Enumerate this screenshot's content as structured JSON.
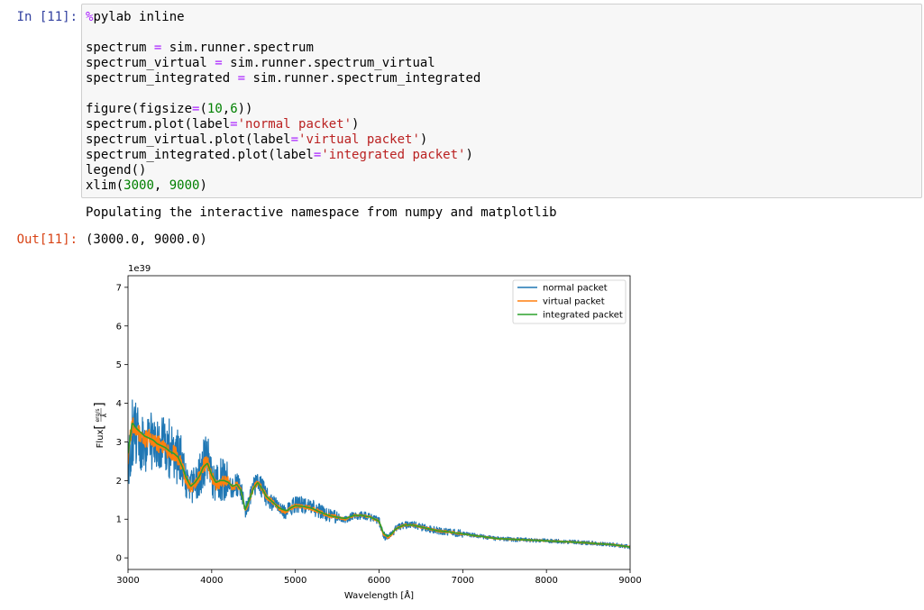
{
  "cell": {
    "in_prompt": "In [11]:",
    "out_prompt": "Out[11]:",
    "code_lines": [
      [
        {
          "t": "%",
          "c": "kw"
        },
        {
          "t": "pylab inline",
          "c": ""
        }
      ],
      [
        {
          "t": "",
          "c": ""
        }
      ],
      [
        {
          "t": "spectrum ",
          "c": ""
        },
        {
          "t": "=",
          "c": "op"
        },
        {
          "t": " sim.runner.spectrum",
          "c": ""
        }
      ],
      [
        {
          "t": "spectrum_virtual ",
          "c": ""
        },
        {
          "t": "=",
          "c": "op"
        },
        {
          "t": " sim.runner.spectrum_virtual",
          "c": ""
        }
      ],
      [
        {
          "t": "spectrum_integrated ",
          "c": ""
        },
        {
          "t": "=",
          "c": "op"
        },
        {
          "t": " sim.runner.spectrum_integrated",
          "c": ""
        }
      ],
      [
        {
          "t": "",
          "c": ""
        }
      ],
      [
        {
          "t": "figure(figsize",
          "c": ""
        },
        {
          "t": "=",
          "c": "op"
        },
        {
          "t": "(",
          "c": ""
        },
        {
          "t": "10",
          "c": "num"
        },
        {
          "t": ",",
          "c": ""
        },
        {
          "t": "6",
          "c": "num"
        },
        {
          "t": "))",
          "c": ""
        }
      ],
      [
        {
          "t": "spectrum.plot(label",
          "c": ""
        },
        {
          "t": "=",
          "c": "op"
        },
        {
          "t": "'normal packet'",
          "c": "str"
        },
        {
          "t": ")",
          "c": ""
        }
      ],
      [
        {
          "t": "spectrum_virtual.plot(label",
          "c": ""
        },
        {
          "t": "=",
          "c": "op"
        },
        {
          "t": "'virtual packet'",
          "c": "str"
        },
        {
          "t": ")",
          "c": ""
        }
      ],
      [
        {
          "t": "spectrum_integrated.plot(label",
          "c": ""
        },
        {
          "t": "=",
          "c": "op"
        },
        {
          "t": "'integrated packet'",
          "c": "str"
        },
        {
          "t": ")",
          "c": ""
        }
      ],
      [
        {
          "t": "legend()",
          "c": ""
        }
      ],
      [
        {
          "t": "xlim(",
          "c": ""
        },
        {
          "t": "3000",
          "c": "num"
        },
        {
          "t": ", ",
          "c": ""
        },
        {
          "t": "9000",
          "c": "num"
        },
        {
          "t": ")",
          "c": ""
        }
      ]
    ],
    "stream_output": "Populating the interactive namespace from numpy and matplotlib",
    "result_output": "(3000.0, 9000.0)"
  },
  "chart_data": {
    "type": "line",
    "xlabel": "Wavelength [Å]",
    "ylabel": "Flux [erg/s/Å]",
    "ylabel_prefix": "Flux",
    "ylabel_frac_num": "erg/s",
    "ylabel_frac_den": "Å",
    "offset_label": "1e39",
    "xlim": [
      3000,
      9000
    ],
    "ylim": [
      -0.3,
      7.3
    ],
    "xticks": [
      3000,
      4000,
      5000,
      6000,
      7000,
      8000,
      9000
    ],
    "yticks": [
      0,
      1,
      2,
      3,
      4,
      5,
      6,
      7
    ],
    "legend_position": "top-right",
    "x": [
      3000,
      3050,
      3100,
      3150,
      3200,
      3250,
      3300,
      3350,
      3400,
      3450,
      3500,
      3550,
      3600,
      3650,
      3700,
      3750,
      3800,
      3850,
      3900,
      3950,
      4000,
      4050,
      4100,
      4150,
      4200,
      4250,
      4300,
      4350,
      4400,
      4450,
      4500,
      4550,
      4600,
      4650,
      4700,
      4750,
      4800,
      4850,
      4900,
      4950,
      5000,
      5100,
      5200,
      5300,
      5400,
      5500,
      5600,
      5700,
      5800,
      5900,
      6000,
      6050,
      6100,
      6150,
      6200,
      6300,
      6400,
      6500,
      6600,
      6700,
      6800,
      7000,
      7200,
      7400,
      7600,
      7800,
      8000,
      8200,
      8400,
      8600,
      8800,
      9000
    ],
    "series": [
      {
        "name": "normal packet",
        "color": "#1f77b4",
        "noise": 0.45,
        "values": [
          2.3,
          3.3,
          3.2,
          3.1,
          3.0,
          3.1,
          3.0,
          2.9,
          2.9,
          2.8,
          2.8,
          2.7,
          2.6,
          2.4,
          2.0,
          1.8,
          1.9,
          2.1,
          2.4,
          2.5,
          2.1,
          1.9,
          2.0,
          2.0,
          1.9,
          1.8,
          1.9,
          1.8,
          1.2,
          1.5,
          1.8,
          1.9,
          1.8,
          1.6,
          1.5,
          1.4,
          1.3,
          1.2,
          1.2,
          1.3,
          1.4,
          1.35,
          1.3,
          1.2,
          1.1,
          1.05,
          1.0,
          1.1,
          1.1,
          1.05,
          0.95,
          0.6,
          0.5,
          0.6,
          0.75,
          0.85,
          0.85,
          0.8,
          0.75,
          0.7,
          0.68,
          0.62,
          0.56,
          0.5,
          0.48,
          0.46,
          0.44,
          0.42,
          0.4,
          0.37,
          0.34,
          0.28
        ]
      },
      {
        "name": "virtual packet",
        "color": "#ff7f0e",
        "noise": 0.12,
        "values": [
          2.6,
          3.5,
          3.3,
          3.2,
          3.1,
          3.1,
          3.0,
          2.95,
          2.9,
          2.8,
          2.75,
          2.7,
          2.6,
          2.35,
          2.0,
          1.8,
          1.9,
          2.1,
          2.4,
          2.45,
          2.1,
          1.9,
          1.95,
          2.0,
          1.95,
          1.8,
          1.9,
          1.75,
          1.2,
          1.5,
          1.8,
          1.95,
          1.8,
          1.6,
          1.5,
          1.4,
          1.3,
          1.2,
          1.2,
          1.3,
          1.35,
          1.33,
          1.28,
          1.18,
          1.1,
          1.05,
          1.0,
          1.1,
          1.1,
          1.05,
          0.95,
          0.62,
          0.52,
          0.6,
          0.75,
          0.85,
          0.85,
          0.8,
          0.75,
          0.7,
          0.68,
          0.62,
          0.56,
          0.5,
          0.48,
          0.46,
          0.44,
          0.42,
          0.4,
          0.37,
          0.34,
          0.28
        ]
      },
      {
        "name": "integrated packet",
        "color": "#2ca02c",
        "noise": 0.0,
        "values": [
          2.7,
          3.5,
          3.35,
          3.25,
          3.15,
          3.1,
          3.05,
          2.95,
          2.9,
          2.85,
          2.75,
          2.7,
          2.6,
          2.35,
          2.05,
          1.85,
          1.95,
          2.1,
          2.35,
          2.45,
          2.15,
          1.95,
          2.0,
          2.0,
          1.95,
          1.85,
          1.9,
          1.75,
          1.25,
          1.5,
          1.8,
          1.95,
          1.8,
          1.6,
          1.5,
          1.4,
          1.3,
          1.25,
          1.22,
          1.3,
          1.35,
          1.33,
          1.28,
          1.18,
          1.1,
          1.05,
          1.02,
          1.1,
          1.1,
          1.05,
          0.95,
          0.65,
          0.55,
          0.62,
          0.75,
          0.85,
          0.85,
          0.8,
          0.75,
          0.7,
          0.68,
          0.62,
          0.56,
          0.5,
          0.48,
          0.46,
          0.44,
          0.42,
          0.4,
          0.37,
          0.34,
          0.28
        ]
      }
    ]
  }
}
